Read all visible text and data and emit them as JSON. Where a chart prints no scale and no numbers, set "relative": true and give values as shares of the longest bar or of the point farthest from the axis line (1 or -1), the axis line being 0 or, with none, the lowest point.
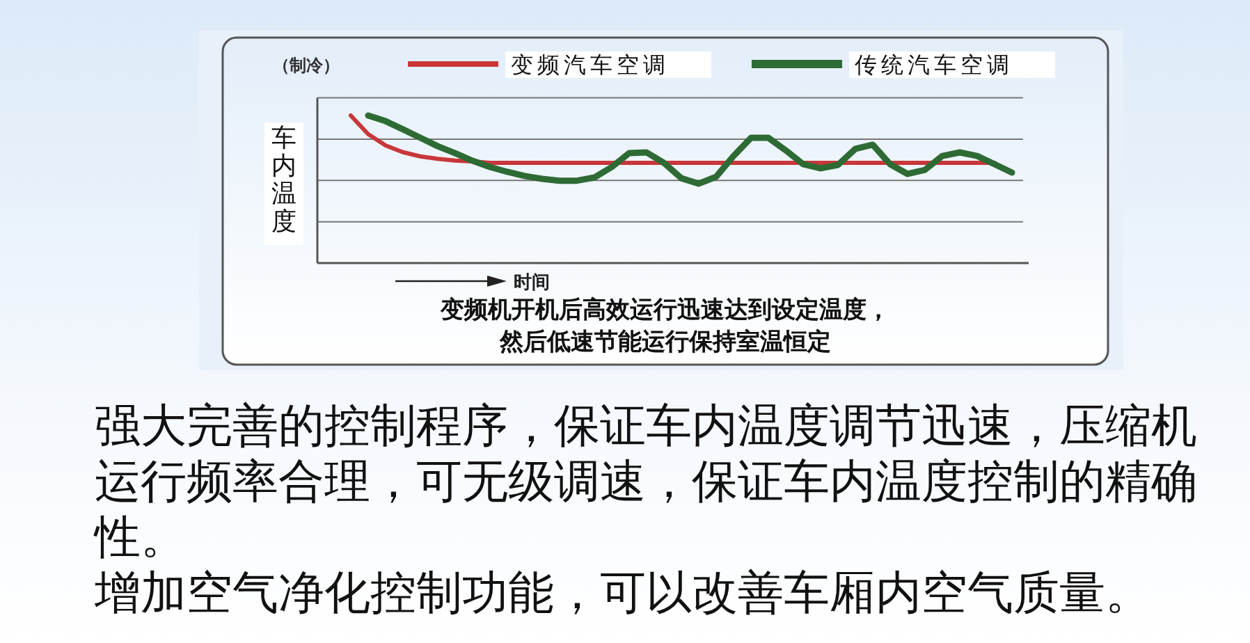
{
  "chart_data": {
    "type": "line",
    "relative": true,
    "title": "（制冷）",
    "ylabel": "车内温度",
    "xlabel": "时间",
    "legend": "top",
    "grid": true,
    "marker": "none",
    "line_style": "solid",
    "categories": [
      null,
      null,
      null,
      null,
      null,
      null,
      null,
      null,
      null,
      null,
      null,
      null,
      null,
      null,
      null,
      null,
      null,
      null,
      null,
      null,
      null,
      null,
      null,
      null,
      null,
      null,
      null,
      null,
      null,
      null,
      null,
      null,
      null,
      null,
      null,
      null,
      null,
      null,
      null
    ],
    "series": [
      {
        "name": "变频汽车空调",
        "color": "#c8373a",
        "values": [
          1.0,
          0.874,
          0.797,
          0.751,
          0.723,
          0.706,
          0.695,
          0.689,
          0.679,
          0.679,
          0.679,
          0.679,
          0.679,
          0.679,
          0.679,
          0.679,
          0.679,
          0.679,
          0.679,
          0.679,
          0.679,
          0.679,
          0.679,
          0.679,
          0.679,
          0.679,
          0.679,
          0.679,
          0.679,
          0.679,
          0.679,
          0.679,
          0.679,
          0.679,
          0.679,
          0.679,
          0.679,
          0.679,
          null
        ]
      },
      {
        "name": "传统汽车空调",
        "color": "#2e6b34",
        "values": [
          null,
          1.0,
          0.962,
          0.906,
          0.849,
          0.792,
          0.745,
          0.693,
          0.651,
          0.618,
          0.59,
          0.571,
          0.558,
          0.558,
          0.58,
          0.651,
          0.745,
          0.75,
          0.679,
          0.575,
          0.538,
          0.585,
          0.726,
          0.849,
          0.849,
          0.764,
          0.67,
          0.642,
          0.665,
          0.774,
          0.802,
          0.67,
          0.604,
          0.632,
          0.726,
          0.75,
          0.726,
          0.67,
          0.613
        ]
      }
    ],
    "annotations": [
      "变频机开机后高效运行迅速达到设定温度，",
      "然后低速节能运行保持室温恒定",
      "强大完善的控制程序，保证车内温度调节迅速，压缩机运行频率合理，可无级调速，保证车内温度控制的精确性。",
      "增加空气净化控制功能，可以改善车厢内空气质量。"
    ]
  }
}
